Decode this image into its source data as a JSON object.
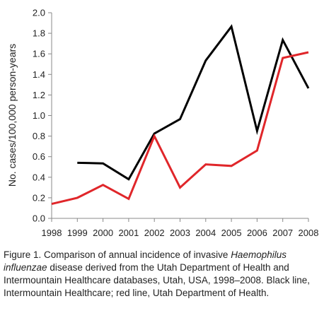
{
  "chart_data": {
    "type": "line",
    "categories": [
      "1998",
      "1999",
      "2000",
      "2001",
      "2002",
      "2003",
      "2004",
      "2005",
      "2006",
      "2007",
      "2008"
    ],
    "series": [
      {
        "color": "#000000",
        "values": [
          null,
          0.54,
          0.535,
          0.38,
          0.825,
          0.965,
          1.535,
          1.865,
          0.85,
          1.735,
          1.265
        ]
      },
      {
        "color": "#e0262a",
        "values": [
          0.14,
          0.2,
          0.325,
          0.19,
          0.8,
          0.3,
          0.525,
          0.51,
          0.66,
          1.56,
          1.615
        ]
      }
    ],
    "ylabel": "No. cases/100,000 person-years",
    "ylim": [
      0,
      2.0
    ],
    "yticks": [
      "0.0",
      "0.2",
      "0.4",
      "0.6",
      "0.8",
      "1.0",
      "1.2",
      "1.4",
      "1.6",
      "1.8",
      "2.0"
    ],
    "grid": false
  },
  "caption": {
    "prefix": "Figure 1. Comparison of annual incidence of invasive ",
    "italic_1": "Haemophilus",
    "italic_2": "influenzae",
    "suffix": " disease derived from the Utah Department of Health and Intermountain Healthcare databases, Utah, USA, 1998–2008. Black line, Intermountain Healthcare; red line, Utah Department of Health."
  }
}
